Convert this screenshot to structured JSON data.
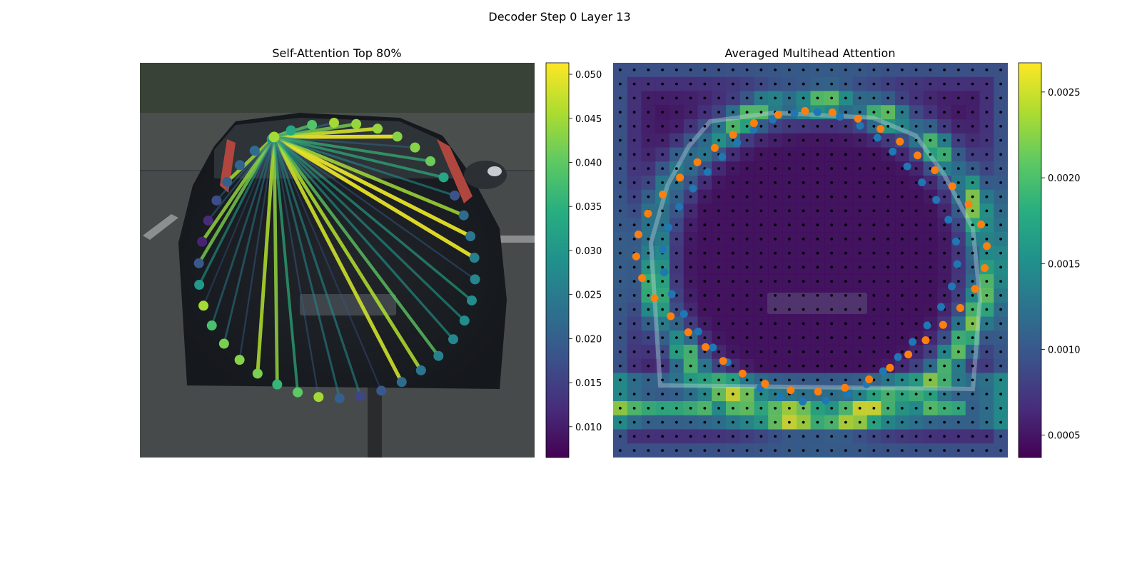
{
  "figure": {
    "suptitle": "Decoder Step 0 Layer 13"
  },
  "panels": [
    {
      "title": "Self-Attention Top 80%",
      "colorbar": {
        "colormap": "viridis",
        "range": [
          0.0065,
          0.0513
        ],
        "ticks": [
          "0.010",
          "0.015",
          "0.020",
          "0.025",
          "0.030",
          "0.035",
          "0.040",
          "0.045",
          "0.050"
        ]
      }
    },
    {
      "title": "Averaged Multihead Attention",
      "colorbar": {
        "colormap": "viridis",
        "range": [
          0.00037,
          0.00267
        ],
        "ticks": [
          "0.0005",
          "0.0010",
          "0.0015",
          "0.0020",
          "0.0025"
        ]
      },
      "legend_colors": {
        "query_points_a": "#1f77b4",
        "query_points_b": "#ff7f0e",
        "grid_points": "#000000"
      }
    }
  ],
  "chart_data": [
    {
      "type": "scatter",
      "title": "Self-Attention Top 80%",
      "description_of_marks": "40 query points on a ring; lines from the highlighted query to others colored by attention weight",
      "color_scale": [
        0.0065,
        0.0513
      ],
      "source_point_value": 0.045,
      "point_values": [
        0.045,
        0.044,
        0.044,
        0.043,
        0.043,
        0.041,
        0.033,
        0.018,
        0.022,
        0.024,
        0.026,
        0.027,
        0.028,
        0.028,
        0.027,
        0.026,
        0.024,
        0.022,
        0.019,
        0.016,
        0.02,
        0.045,
        0.04,
        0.036,
        0.042,
        0.043,
        0.042,
        0.038,
        0.045,
        0.03,
        0.019,
        0.011,
        0.012,
        0.017,
        0.02,
        0.021,
        0.022,
        0.029,
        0.033,
        0.039
      ],
      "edge_weights": [
        0.05,
        0.05,
        0.048,
        0.046,
        0.044,
        0.04,
        0.035,
        0.03,
        0.027,
        0.025,
        0.045,
        0.048,
        0.05,
        0.046,
        0.044,
        0.042,
        0.04,
        0.036,
        0.032,
        0.028,
        0.025,
        0.022,
        0.042,
        0.045,
        0.04,
        0.035,
        0.03,
        0.026,
        0.022,
        0.02,
        0.018,
        0.02,
        0.022,
        0.025,
        0.028,
        0.03,
        0.02,
        0.018
      ]
    },
    {
      "type": "heatmap",
      "title": "Averaged Multihead Attention",
      "grid": [
        28,
        28
      ],
      "color_scale": [
        0.00037,
        0.00267
      ],
      "series": [
        {
          "name": "",
          "color": "#1f77b4",
          "count": 40
        },
        {
          "name": "",
          "color": "#ff7f0e",
          "count": 40
        }
      ]
    }
  ]
}
